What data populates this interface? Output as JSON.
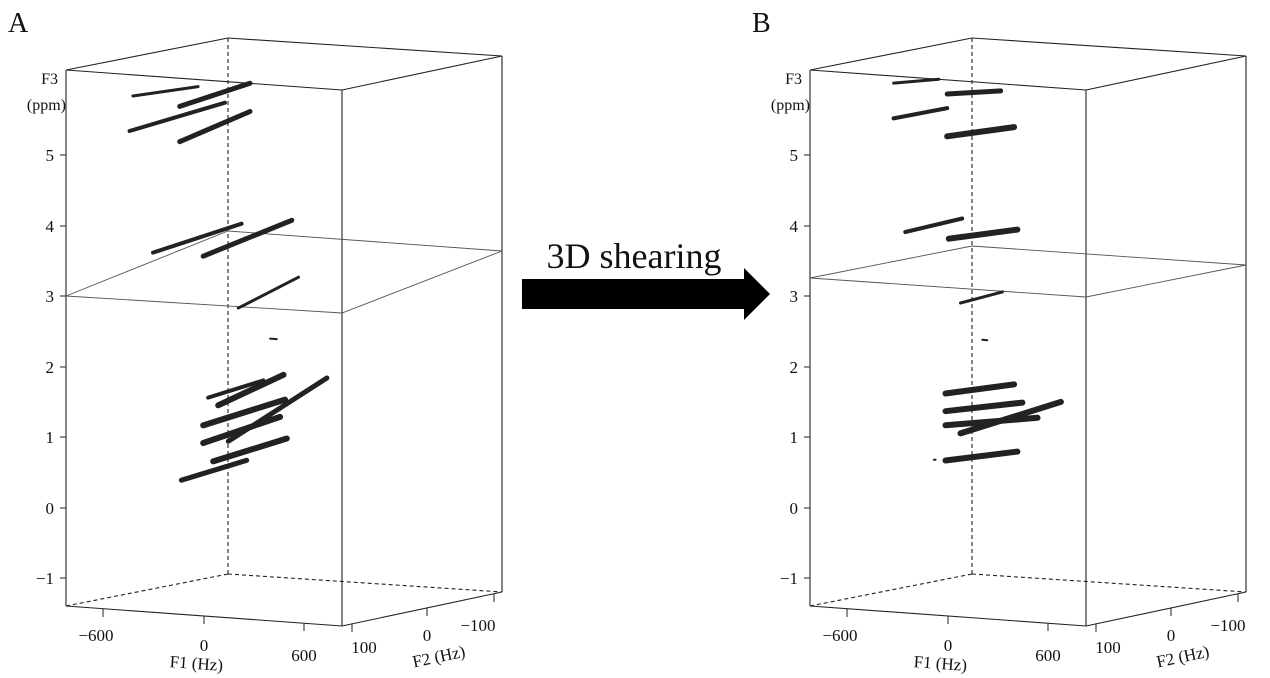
{
  "arrow": {
    "label": "3D shearing"
  },
  "chart_data": [
    {
      "type": "scatter",
      "panel_label": "A",
      "z_axis": {
        "label_top": "F3",
        "label_bottom": "(ppm)",
        "ticks": [
          "5",
          "4",
          "3",
          "2",
          "1",
          "0",
          "−1"
        ],
        "range": [
          -1.4,
          6.2
        ]
      },
      "x_axis": {
        "label": "F1 (Hz)",
        "ticks": [
          "−600",
          "0",
          "600"
        ],
        "range": [
          -800,
          850
        ]
      },
      "y_axis": {
        "label": "F2 (Hz)",
        "ticks": [
          "100",
          "0",
          "−100"
        ],
        "range": [
          120,
          -120
        ]
      },
      "cross_section_plane_ppm": 3.0,
      "peaks": [
        {
          "x1": -400,
          "y1": 0,
          "z1": 5.9,
          "x2": -10,
          "y2": 0,
          "z2": 6.1,
          "w": 3
        },
        {
          "x1": -420,
          "y1": 0,
          "z1": 5.4,
          "x2": 150,
          "y2": 0,
          "z2": 5.9,
          "w": 4
        },
        {
          "x1": -120,
          "y1": 0,
          "z1": 5.8,
          "x2": 300,
          "y2": 0,
          "z2": 6.2,
          "w": 5
        },
        {
          "x1": -120,
          "y1": 0,
          "z1": 5.3,
          "x2": 300,
          "y2": 0,
          "z2": 5.8,
          "w": 5
        },
        {
          "x1": -280,
          "y1": 0,
          "z1": 3.7,
          "x2": 250,
          "y2": 0,
          "z2": 4.2,
          "w": 4
        },
        {
          "x1": 20,
          "y1": 0,
          "z1": 3.7,
          "x2": 550,
          "y2": 0,
          "z2": 4.3,
          "w": 5
        },
        {
          "x1": 230,
          "y1": 0,
          "z1": 3.0,
          "x2": 590,
          "y2": 0,
          "z2": 3.5,
          "w": 3
        },
        {
          "x1": 420,
          "y1": 0,
          "z1": 2.6,
          "x2": 460,
          "y2": 0,
          "z2": 2.6,
          "w": 2
        },
        {
          "x1": 50,
          "y1": 0,
          "z1": 1.7,
          "x2": 380,
          "y2": 0,
          "z2": 2.0,
          "w": 4
        },
        {
          "x1": 110,
          "y1": 0,
          "z1": 1.6,
          "x2": 500,
          "y2": 0,
          "z2": 2.1,
          "w": 6
        },
        {
          "x1": 20,
          "y1": 0,
          "z1": 1.3,
          "x2": 510,
          "y2": 0,
          "z2": 1.75,
          "w": 6
        },
        {
          "x1": 170,
          "y1": 0,
          "z1": 1.1,
          "x2": 760,
          "y2": 0,
          "z2": 2.1,
          "w": 5
        },
        {
          "x1": 20,
          "y1": 0,
          "z1": 1.05,
          "x2": 480,
          "y2": 0,
          "z2": 1.5,
          "w": 6
        },
        {
          "x1": 80,
          "y1": 0,
          "z1": 0.8,
          "x2": 520,
          "y2": 0,
          "z2": 1.2,
          "w": 6
        },
        {
          "x1": -110,
          "y1": 0,
          "z1": 0.5,
          "x2": 280,
          "y2": 0,
          "z2": 0.85,
          "w": 5
        }
      ]
    },
    {
      "type": "scatter",
      "panel_label": "B",
      "z_axis": {
        "label_top": "F3",
        "label_bottom": "(ppm)",
        "ticks": [
          "5",
          "4",
          "3",
          "2",
          "1",
          "0",
          "−1"
        ],
        "range": [
          -1.4,
          6.2
        ]
      },
      "x_axis": {
        "label": "F1 (Hz)",
        "ticks": [
          "−600",
          "0",
          "600"
        ],
        "range": [
          -800,
          850
        ]
      },
      "y_axis": {
        "label": "F2 (Hz)",
        "ticks": [
          "100",
          "0",
          "−100"
        ],
        "range": [
          120,
          -120
        ]
      },
      "cross_section_plane_ppm": 3.2,
      "peaks": [
        {
          "x1": -300,
          "y1": 0,
          "z1": 6.1,
          "x2": -30,
          "y2": 0,
          "z2": 6.2,
          "w": 3
        },
        {
          "x1": -300,
          "y1": 0,
          "z1": 5.6,
          "x2": 20,
          "y2": 0,
          "z2": 5.8,
          "w": 4
        },
        {
          "x1": 20,
          "y1": 0,
          "z1": 6.0,
          "x2": 340,
          "y2": 0,
          "z2": 6.1,
          "w": 5
        },
        {
          "x1": 20,
          "y1": 0,
          "z1": 5.4,
          "x2": 420,
          "y2": 0,
          "z2": 5.6,
          "w": 6
        },
        {
          "x1": -230,
          "y1": 0,
          "z1": 4.0,
          "x2": 110,
          "y2": 0,
          "z2": 4.25,
          "w": 4
        },
        {
          "x1": 30,
          "y1": 0,
          "z1": 3.95,
          "x2": 440,
          "y2": 0,
          "z2": 4.15,
          "w": 6
        },
        {
          "x1": 100,
          "y1": 0,
          "z1": 3.05,
          "x2": 350,
          "y2": 0,
          "z2": 3.25,
          "w": 3
        },
        {
          "x1": 230,
          "y1": 0,
          "z1": 2.55,
          "x2": 260,
          "y2": 0,
          "z2": 2.55,
          "w": 2
        },
        {
          "x1": 10,
          "y1": 0,
          "z1": 1.75,
          "x2": 420,
          "y2": 0,
          "z2": 1.95,
          "w": 6
        },
        {
          "x1": 10,
          "y1": 0,
          "z1": 1.5,
          "x2": 470,
          "y2": 0,
          "z2": 1.7,
          "w": 6
        },
        {
          "x1": 10,
          "y1": 0,
          "z1": 1.3,
          "x2": 560,
          "y2": 0,
          "z2": 1.5,
          "w": 6
        },
        {
          "x1": 100,
          "y1": 0,
          "z1": 1.2,
          "x2": 700,
          "y2": 0,
          "z2": 1.75,
          "w": 6
        },
        {
          "x1": 10,
          "y1": 0,
          "z1": 0.8,
          "x2": 440,
          "y2": 0,
          "z2": 1.0,
          "w": 6
        },
        {
          "x1": -60,
          "y1": 0,
          "z1": 0.8,
          "x2": -50,
          "y2": 0,
          "z2": 0.8,
          "w": 2
        }
      ]
    }
  ]
}
